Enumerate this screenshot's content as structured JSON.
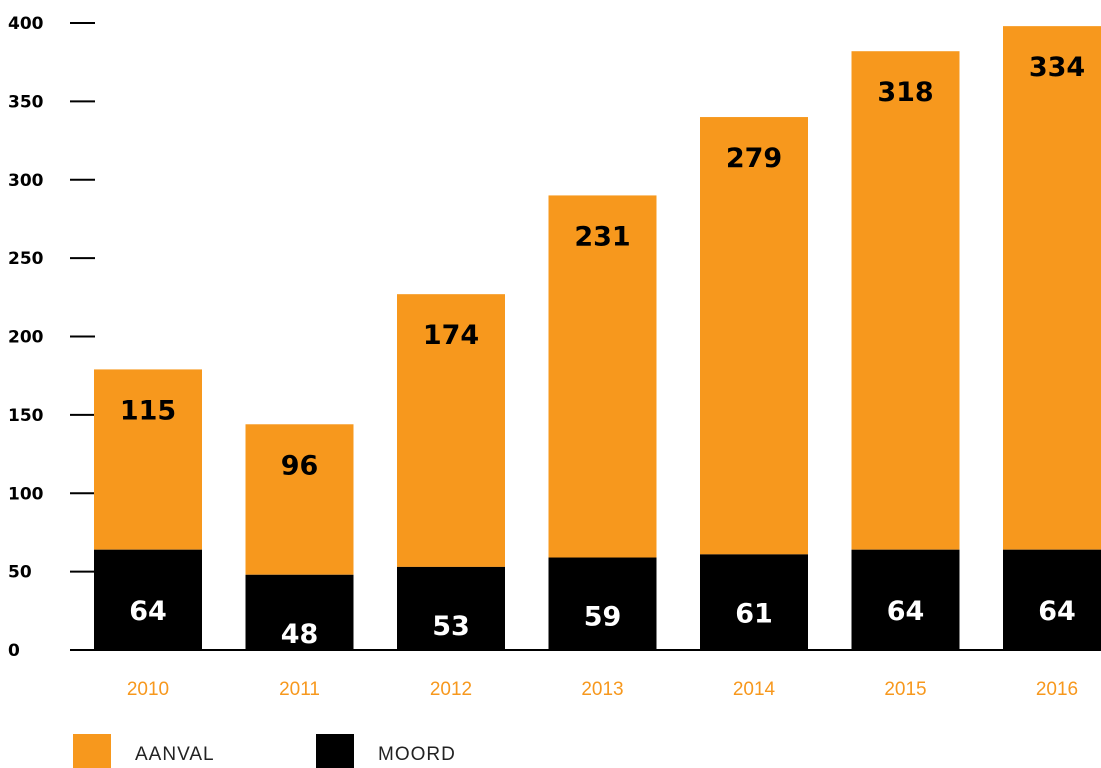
{
  "chart_data": {
    "type": "bar",
    "stacked": true,
    "categories": [
      "2010",
      "2011",
      "2012",
      "2013",
      "2014",
      "2015",
      "2016"
    ],
    "series": [
      {
        "name": "MOORD",
        "values": [
          64,
          48,
          53,
          59,
          61,
          64,
          64
        ],
        "color": "#000000",
        "label_color": "#ffffff"
      },
      {
        "name": "AANVAL",
        "values": [
          115,
          96,
          174,
          231,
          279,
          318,
          334
        ],
        "color": "#f7981d",
        "label_color": "#000000"
      }
    ],
    "ylim": [
      0,
      400
    ],
    "yticks": [
      "0",
      "50",
      "100",
      "150",
      "200",
      "250",
      "300",
      "350",
      "400"
    ],
    "grid": false,
    "legend": {
      "position": "bottom-left",
      "items": [
        {
          "name": "AANVAL",
          "color": "#f7981d"
        },
        {
          "name": "MOORD",
          "color": "#000000"
        }
      ]
    },
    "title": "",
    "xlabel": "",
    "ylabel": "",
    "xtick_color": "#f7981d"
  }
}
